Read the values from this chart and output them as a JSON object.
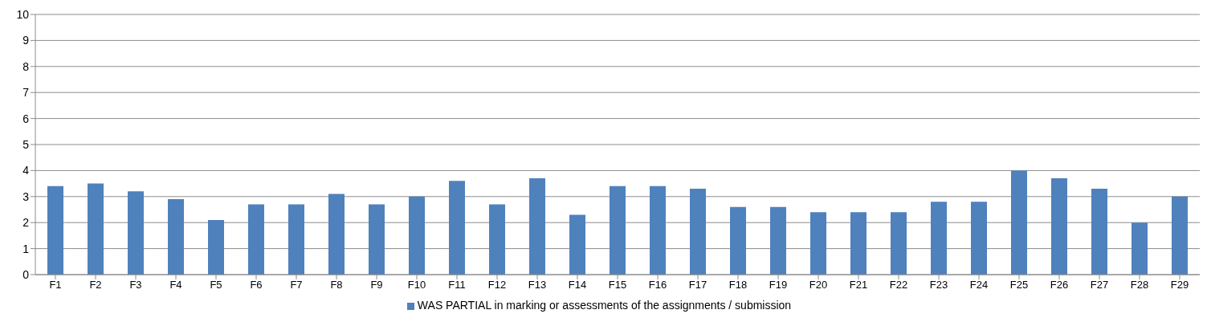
{
  "chart_data": {
    "type": "bar",
    "categories": [
      "F1",
      "F2",
      "F3",
      "F4",
      "F5",
      "F6",
      "F7",
      "F8",
      "F9",
      "F10",
      "F11",
      "F12",
      "F13",
      "F14",
      "F15",
      "F16",
      "F17",
      "F18",
      "F19",
      "F20",
      "F21",
      "F22",
      "F23",
      "F24",
      "F25",
      "F26",
      "F27",
      "F28",
      "F29"
    ],
    "series": [
      {
        "name": "WAS PARTIAL in marking or assessments of the assignments / submission",
        "color": "#4f81bd",
        "values": [
          3.4,
          3.5,
          3.2,
          2.9,
          2.1,
          2.7,
          2.7,
          3.1,
          2.7,
          3.0,
          3.6,
          2.7,
          3.7,
          2.3,
          3.4,
          3.4,
          3.3,
          2.6,
          2.6,
          2.4,
          2.4,
          2.4,
          2.8,
          2.8,
          4.0,
          3.7,
          3.3,
          2.0,
          3.0
        ]
      }
    ],
    "ylim": [
      0,
      10
    ],
    "yticks": [
      0,
      1,
      2,
      3,
      4,
      5,
      6,
      7,
      8,
      9,
      10
    ],
    "grid": "y",
    "legend": "bottom"
  }
}
